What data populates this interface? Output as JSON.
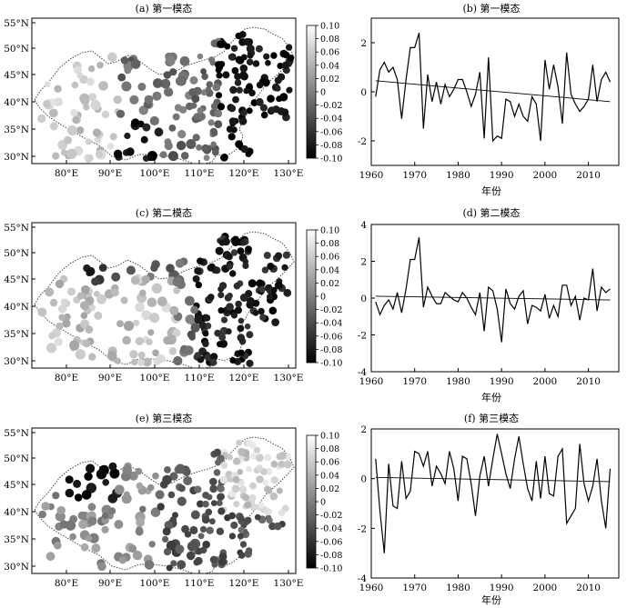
{
  "figure": {
    "panels": [
      {
        "map_title": "(a) 第一模态",
        "series_title": "(b) 第一模态",
        "series_xlabel": "年份"
      },
      {
        "map_title": "(c) 第二模态",
        "series_title": "(d) 第二模态",
        "series_xlabel": "年份"
      },
      {
        "map_title": "(e) 第三模态",
        "series_title": "(f) 第三模态",
        "series_xlabel": "年份"
      }
    ],
    "map_x_ticks": [
      "80°E",
      "90°E",
      "100°E",
      "110°E",
      "120°E",
      "130°E"
    ],
    "map_y_ticks": [
      "55°N",
      "50°N",
      "45°N",
      "40°N",
      "35°N",
      "30°N"
    ],
    "colorbar_ticks": [
      "0.10",
      "0.08",
      "0.06",
      "0.04",
      "0.02",
      "0",
      "-0.02",
      "-0.04",
      "-0.06",
      "-0.08",
      "-0.10"
    ],
    "colors": {
      "ink": "#000000",
      "map_border": "#333333",
      "colorbar_high": "#ffffff",
      "colorbar_low": "#000000"
    }
  },
  "chart_data": [
    {
      "type": "line",
      "title": "(b) 第一模态",
      "xlabel": "",
      "ylabel": "",
      "xlim": [
        1960,
        2017
      ],
      "ylim": [
        -3,
        3
      ],
      "x_ticks": [
        1960,
        1970,
        1980,
        1990,
        2000,
        2010
      ],
      "y_ticks": [
        -2,
        0,
        2
      ],
      "x": [
        1961,
        1962,
        1963,
        1964,
        1965,
        1966,
        1967,
        1968,
        1969,
        1970,
        1971,
        1972,
        1973,
        1974,
        1975,
        1976,
        1977,
        1978,
        1979,
        1980,
        1981,
        1982,
        1983,
        1984,
        1985,
        1986,
        1987,
        1988,
        1989,
        1990,
        1991,
        1992,
        1993,
        1994,
        1995,
        1996,
        1997,
        1998,
        1999,
        2000,
        2001,
        2002,
        2003,
        2004,
        2005,
        2006,
        2007,
        2008,
        2009,
        2010,
        2011,
        2012,
        2013,
        2014,
        2015
      ],
      "series": [
        {
          "values": [
            -0.2,
            0.9,
            1.2,
            0.8,
            1.0,
            0.5,
            -1.1,
            0.5,
            1.8,
            1.8,
            2.4,
            -1.5,
            0.7,
            -0.4,
            0.4,
            -0.5,
            0.3,
            -0.2,
            0.1,
            0.5,
            0.5,
            0.0,
            -0.6,
            -0.1,
            0.8,
            -1.9,
            1.4,
            -2.0,
            -1.8,
            -1.9,
            -0.3,
            -0.4,
            -1.0,
            -0.5,
            -1.0,
            -1.2,
            -0.2,
            -0.5,
            -2.0,
            1.3,
            0.1,
            1.1,
            0.2,
            -1.3,
            1.6,
            -0.1,
            -0.5,
            -0.8,
            -0.6,
            -0.3,
            1.1,
            -0.4,
            0.5,
            0.8,
            0.4
          ]
        }
      ],
      "trend": {
        "start": [
          1961,
          0.45
        ],
        "end": [
          2015,
          -0.4
        ]
      }
    },
    {
      "type": "line",
      "title": "(d) 第二模态",
      "xlabel": "年份",
      "ylabel": "",
      "xlim": [
        1960,
        2017
      ],
      "ylim": [
        -4,
        4
      ],
      "x_ticks": [
        1960,
        1970,
        1980,
        1990,
        2000,
        2010
      ],
      "y_ticks": [
        -4,
        -2,
        0,
        2,
        4
      ],
      "x": [
        1961,
        1962,
        1963,
        1964,
        1965,
        1966,
        1967,
        1968,
        1969,
        1970,
        1971,
        1972,
        1973,
        1974,
        1975,
        1976,
        1977,
        1978,
        1979,
        1980,
        1981,
        1982,
        1983,
        1984,
        1985,
        1986,
        1987,
        1988,
        1989,
        1990,
        1991,
        1992,
        1993,
        1994,
        1995,
        1996,
        1997,
        1998,
        1999,
        2000,
        2001,
        2002,
        2003,
        2004,
        2005,
        2006,
        2007,
        2008,
        2009,
        2010,
        2011,
        2012,
        2013,
        2014,
        2015
      ],
      "series": [
        {
          "values": [
            -0.2,
            -0.9,
            -0.4,
            -0.1,
            -0.6,
            0.3,
            -0.8,
            0.5,
            2.1,
            2.1,
            3.3,
            -0.5,
            0.6,
            0.1,
            -0.3,
            -0.3,
            0.3,
            0.1,
            -0.1,
            -0.2,
            0.3,
            0.0,
            -0.5,
            -0.9,
            0.3,
            -1.8,
            0.6,
            0.4,
            -0.6,
            -2.4,
            0.5,
            -0.3,
            -0.6,
            0.1,
            0.4,
            -1.4,
            -0.4,
            -0.5,
            -0.7,
            0.2,
            -1.1,
            -0.4,
            -1.0,
            0.7,
            0.7,
            -0.4,
            0.1,
            -1.2,
            0.0,
            -0.1,
            1.6,
            -0.7,
            0.6,
            0.3,
            0.5
          ]
        }
      ],
      "trend": {
        "start": [
          1961,
          0.1
        ],
        "end": [
          2015,
          -0.1
        ]
      }
    },
    {
      "type": "line",
      "title": "(f) 第三模态",
      "xlabel": "年份",
      "ylabel": "",
      "xlim": [
        1960,
        2017
      ],
      "ylim": [
        -4,
        2
      ],
      "x_ticks": [
        1960,
        1970,
        1980,
        1990,
        2000,
        2010
      ],
      "y_ticks": [
        -4,
        -2,
        0,
        2
      ],
      "x": [
        1961,
        1962,
        1963,
        1964,
        1965,
        1966,
        1967,
        1968,
        1969,
        1970,
        1971,
        1972,
        1973,
        1974,
        1975,
        1976,
        1977,
        1978,
        1979,
        1980,
        1981,
        1982,
        1983,
        1984,
        1985,
        1986,
        1987,
        1988,
        1989,
        1990,
        1991,
        1992,
        1993,
        1994,
        1995,
        1996,
        1997,
        1998,
        1999,
        2000,
        2001,
        2002,
        2003,
        2004,
        2005,
        2006,
        2007,
        2008,
        2009,
        2010,
        2011,
        2012,
        2013,
        2014,
        2015
      ],
      "series": [
        {
          "values": [
            0.8,
            -1.3,
            -3.0,
            0.6,
            -1.1,
            -1.2,
            0.7,
            -0.8,
            -0.5,
            1.1,
            1.0,
            0.5,
            1.1,
            -0.3,
            0.5,
            0.2,
            -0.2,
            1.1,
            0.4,
            -0.9,
            0.9,
            0.8,
            -0.2,
            -1.5,
            0.1,
            0.9,
            -0.3,
            0.8,
            1.8,
            1.0,
            0.2,
            -0.4,
            0.8,
            1.7,
            0.6,
            -0.4,
            -0.9,
            0.7,
            -0.8,
            0.9,
            -0.6,
            -0.7,
            0.9,
            1.2,
            -1.8,
            -1.5,
            -1.2,
            1.4,
            -0.2,
            -0.9,
            -0.3,
            0.8,
            -0.9,
            -2.0,
            0.4
          ]
        }
      ],
      "trend": {
        "start": [
          1961,
          0.05
        ],
        "end": [
          2015,
          -0.12
        ]
      }
    }
  ]
}
